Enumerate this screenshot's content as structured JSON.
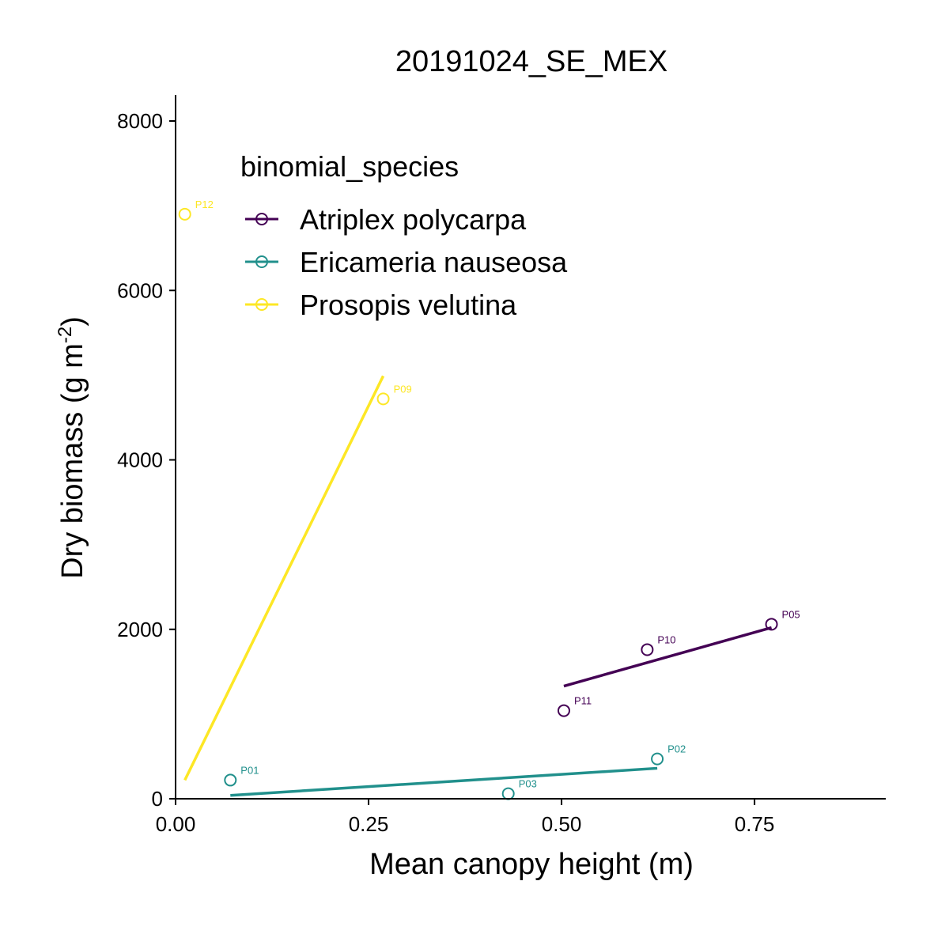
{
  "chart_data": {
    "type": "scatter",
    "title": "20191024_SE_MEX",
    "xlabel": "Mean canopy height (m)",
    "ylabel_main": "Dry biomass (g m",
    "ylabel_sup": "-2",
    "ylabel_close": ")",
    "xlim": [
      0,
      0.92
    ],
    "ylim": [
      0,
      8300
    ],
    "x_ticks": [
      0,
      0.25,
      0.5,
      0.75
    ],
    "x_tick_labels": [
      "0.00",
      "0.25",
      "0.50",
      "0.75"
    ],
    "y_ticks": [
      0,
      2000,
      4000,
      6000,
      8000
    ],
    "y_tick_labels": [
      "0",
      "2000",
      "4000",
      "6000",
      "8000"
    ],
    "grid": false,
    "legend": {
      "title": "binomial_species",
      "placement": "top-left"
    },
    "series": [
      {
        "name": "Atriplex polycarpa",
        "color": "#440154",
        "points": [
          {
            "label": "P05",
            "x": 0.772,
            "y": 2060
          },
          {
            "label": "P10",
            "x": 0.611,
            "y": 1760
          },
          {
            "label": "P11",
            "x": 0.503,
            "y": 1040
          }
        ],
        "fit": {
          "x": [
            0.503,
            0.772
          ],
          "y": [
            1330,
            2020
          ]
        }
      },
      {
        "name": "Ericameria nauseosa",
        "color": "#21908C",
        "points": [
          {
            "label": "P01",
            "x": 0.071,
            "y": 220
          },
          {
            "label": "P02",
            "x": 0.624,
            "y": 470
          },
          {
            "label": "P03",
            "x": 0.431,
            "y": 60
          }
        ],
        "fit": {
          "x": [
            0.071,
            0.624
          ],
          "y": [
            40,
            360
          ]
        }
      },
      {
        "name": "Prosopis velutina",
        "color": "#FDE725",
        "points": [
          {
            "label": "P12",
            "x": 0.012,
            "y": 6900
          },
          {
            "label": "P09",
            "x": 0.269,
            "y": 4720
          }
        ],
        "fit": {
          "x": [
            0.012,
            0.269
          ],
          "y": [
            220,
            4990
          ]
        }
      }
    ]
  }
}
